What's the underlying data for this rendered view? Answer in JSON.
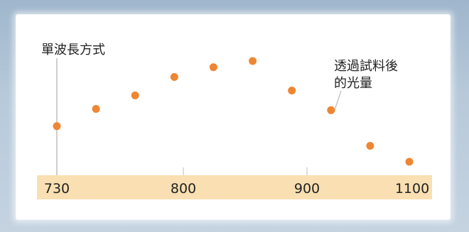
{
  "chart_data": {
    "type": "scatter",
    "x_tick_labels": [
      "730",
      "800",
      "900",
      "1100"
    ],
    "points": [
      {
        "x": 1,
        "y": 1.0
      },
      {
        "x": 2,
        "y": 2.4
      },
      {
        "x": 3,
        "y": 3.5
      },
      {
        "x": 4,
        "y": 5.0
      },
      {
        "x": 5,
        "y": 5.8
      },
      {
        "x": 6,
        "y": 6.3
      },
      {
        "x": 7,
        "y": 3.9
      },
      {
        "x": 8,
        "y": 2.3
      },
      {
        "x": 9,
        "y": -0.6
      },
      {
        "x": 10,
        "y": -1.9
      }
    ],
    "annotations": {
      "single_wavelength": "單波長方式",
      "transmitted_light": [
        "透過試料後",
        "的光量"
      ]
    },
    "colors": {
      "marker": "#ef8633",
      "axis_band": "#f9dfb1"
    },
    "grid": false
  }
}
